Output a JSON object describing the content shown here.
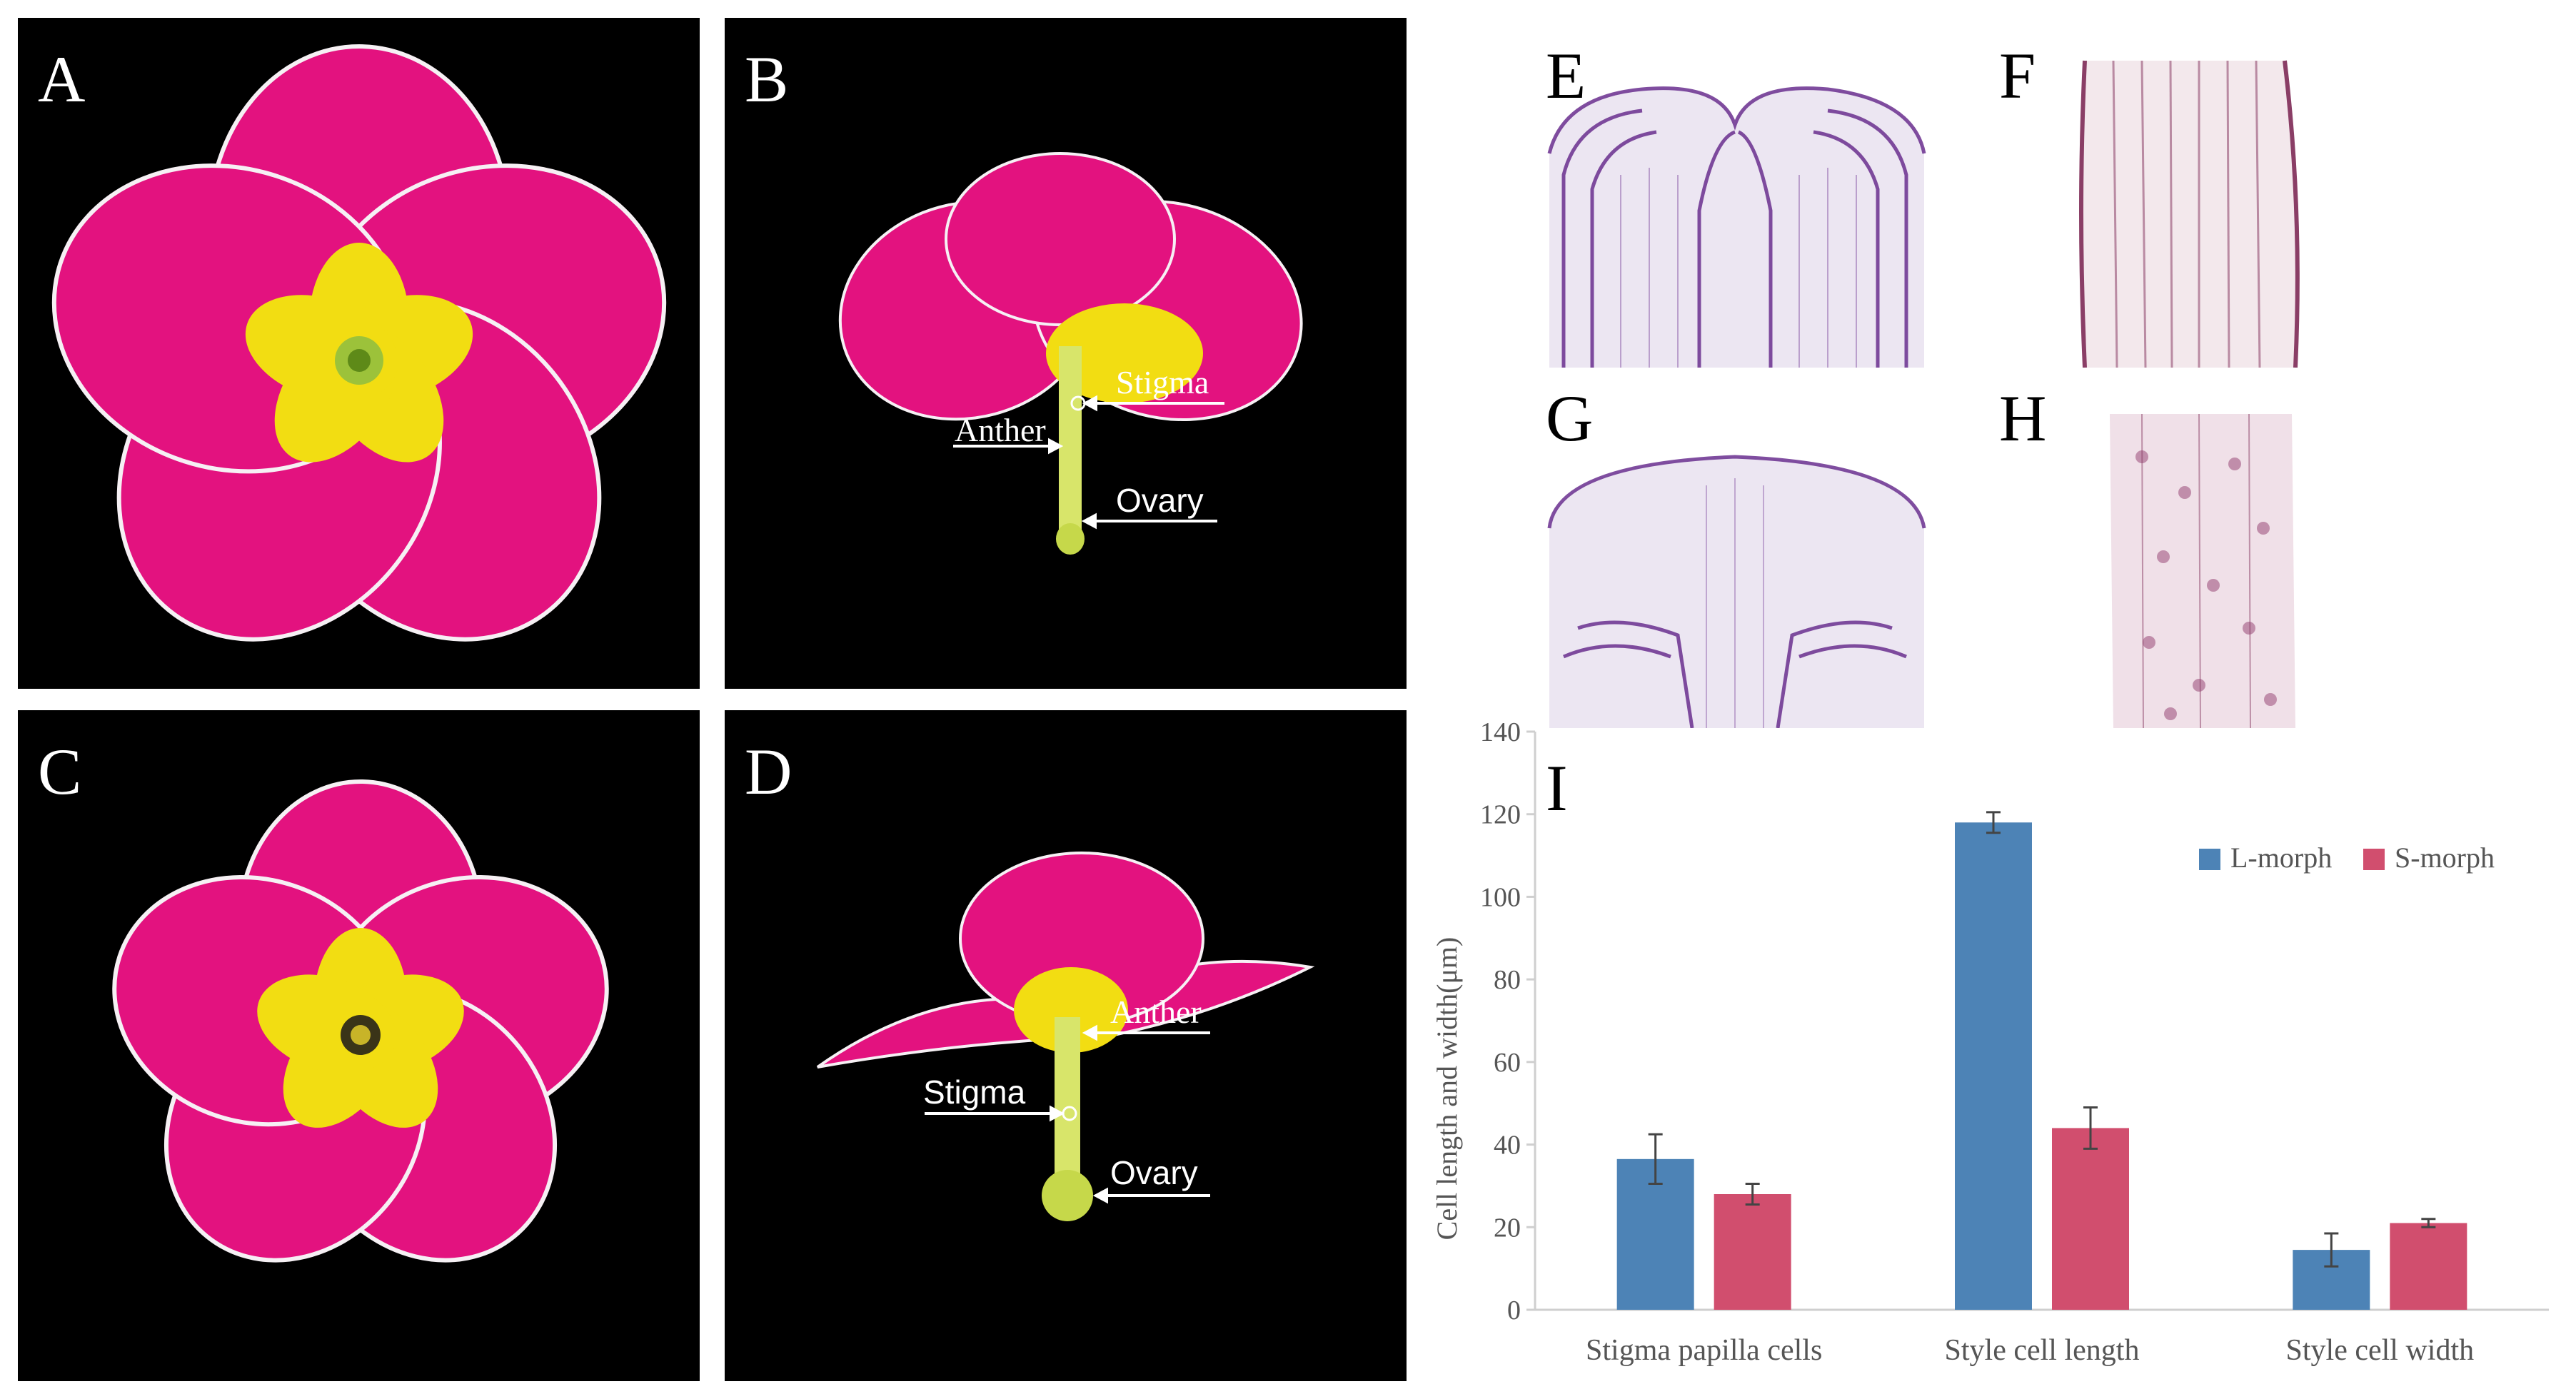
{
  "panels": {
    "A": {
      "label": "A"
    },
    "B": {
      "label": "B",
      "annotations": {
        "stigma": "Stigma",
        "anther": "Anther",
        "ovary": "Ovary"
      }
    },
    "C": {
      "label": "C"
    },
    "D": {
      "label": "D",
      "annotations": {
        "anther": "Anther",
        "stigma": "Stigma",
        "ovary": "Ovary"
      }
    },
    "E": {
      "label": "E"
    },
    "F": {
      "label": "F"
    },
    "G": {
      "label": "G"
    },
    "H": {
      "label": "H"
    }
  },
  "colors": {
    "petal": "#e3127f",
    "petal_dark": "#b80a62",
    "eye": "#f2dd12",
    "tube": "#d8e56a",
    "stain": "#6a2f8f",
    "l_morph": "#4d83b6",
    "s_morph": "#d14e6e"
  },
  "chart_data": {
    "type": "bar",
    "panel_label": "I",
    "title": "",
    "ylabel": "Cell length and width(μm)",
    "xlabel": "",
    "ylim": [
      0,
      140
    ],
    "yticks": [
      0,
      20,
      40,
      60,
      80,
      100,
      120,
      140
    ],
    "categories": [
      "Stigma papilla cells",
      "Style cell length",
      "Style cell width"
    ],
    "series": [
      {
        "name": "L-morph",
        "values": [
          36.5,
          118,
          14.5
        ],
        "errors": [
          6,
          2.5,
          4
        ]
      },
      {
        "name": "S-morph",
        "values": [
          28,
          44,
          21
        ],
        "errors": [
          2.5,
          5,
          1
        ]
      }
    ],
    "legend_position": "top-right",
    "grid": false
  }
}
